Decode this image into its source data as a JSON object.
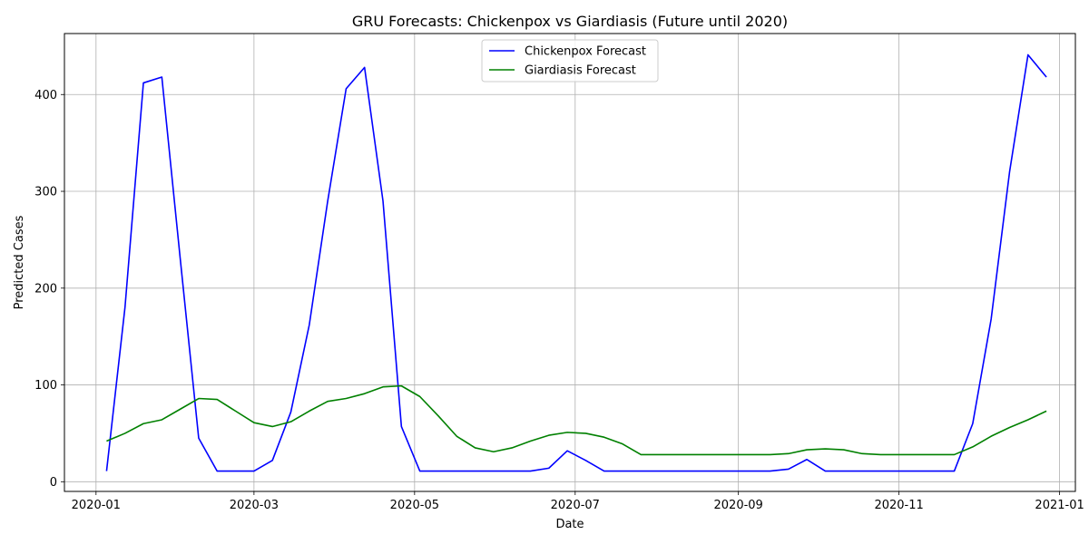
{
  "chart_data": {
    "type": "line",
    "title": "GRU Forecasts: Chickenpox vs Giardiasis (Future until 2020)",
    "xlabel": "Date",
    "ylabel": "Predicted Cases",
    "xlim": [
      "2019-12-20",
      "2021-01-07"
    ],
    "ylim": [
      -10,
      463
    ],
    "grid": true,
    "legend_position": "top-center",
    "x_ticks": [
      "2020-01-01",
      "2020-03-01",
      "2020-05-01",
      "2020-07-01",
      "2020-09-01",
      "2020-11-01",
      "2021-01-01"
    ],
    "x_tick_labels": [
      "2020-01",
      "2020-03",
      "2020-05",
      "2020-07",
      "2020-09",
      "2020-11",
      "2021-01"
    ],
    "y_ticks": [
      0,
      100,
      200,
      300,
      400
    ],
    "y_tick_labels": [
      "0",
      "100",
      "200",
      "300",
      "400"
    ],
    "x": [
      "2020-01-05",
      "2020-01-12",
      "2020-01-19",
      "2020-01-26",
      "2020-02-02",
      "2020-02-09",
      "2020-02-16",
      "2020-02-23",
      "2020-03-01",
      "2020-03-08",
      "2020-03-15",
      "2020-03-22",
      "2020-03-29",
      "2020-04-05",
      "2020-04-12",
      "2020-04-19",
      "2020-04-26",
      "2020-05-03",
      "2020-05-10",
      "2020-05-17",
      "2020-05-24",
      "2020-05-31",
      "2020-06-07",
      "2020-06-14",
      "2020-06-21",
      "2020-06-28",
      "2020-07-05",
      "2020-07-12",
      "2020-07-19",
      "2020-07-26",
      "2020-08-02",
      "2020-08-09",
      "2020-08-16",
      "2020-08-23",
      "2020-08-30",
      "2020-09-06",
      "2020-09-13",
      "2020-09-20",
      "2020-09-27",
      "2020-10-04",
      "2020-10-11",
      "2020-10-18",
      "2020-10-25",
      "2020-11-01",
      "2020-11-08",
      "2020-11-15",
      "2020-11-22",
      "2020-11-29",
      "2020-12-06",
      "2020-12-13",
      "2020-12-20",
      "2020-12-27"
    ],
    "series": [
      {
        "name": "Chickenpox Forecast",
        "color": "#0000ff",
        "values": [
          11,
          180,
          412,
          418,
          230,
          45,
          11,
          11,
          11,
          22,
          72,
          162,
          290,
          406,
          428,
          290,
          57,
          11,
          11,
          11,
          11,
          11,
          11,
          11,
          14,
          32,
          22,
          11,
          11,
          11,
          11,
          11,
          11,
          11,
          11,
          11,
          11,
          13,
          23,
          11,
          11,
          11,
          11,
          11,
          11,
          11,
          11,
          60,
          168,
          320,
          441,
          418
        ]
      },
      {
        "name": "Giardiasis Forecast",
        "color": "#008000",
        "values": [
          42,
          50,
          60,
          64,
          75,
          86,
          85,
          73,
          61,
          57,
          62,
          73,
          83,
          86,
          91,
          98,
          99,
          88,
          68,
          47,
          35,
          31,
          35,
          42,
          48,
          51,
          50,
          46,
          39,
          28,
          28,
          28,
          28,
          28,
          28,
          28,
          28,
          29,
          33,
          34,
          33,
          29,
          28,
          28,
          28,
          28,
          28,
          36,
          47,
          56,
          64,
          73
        ]
      }
    ]
  }
}
